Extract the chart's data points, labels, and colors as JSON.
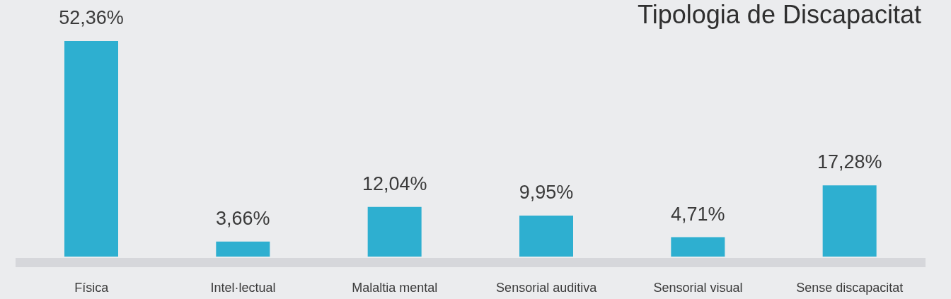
{
  "chart_data": {
    "type": "bar",
    "title": "Tipologia de Discapacitat",
    "categories": [
      "Física",
      "Intel·lectual",
      "Malaltia mental",
      "Sensorial auditiva",
      "Sensorial visual",
      "Sense discapacitat"
    ],
    "values": [
      52.36,
      3.66,
      12.04,
      9.95,
      4.71,
      17.28
    ],
    "value_labels": [
      "52,36%",
      "3,66%",
      "12,04%",
      "9,95%",
      "4,71%",
      "17,28%"
    ],
    "color": "#2eafd0",
    "tick_labels": "x"
  }
}
